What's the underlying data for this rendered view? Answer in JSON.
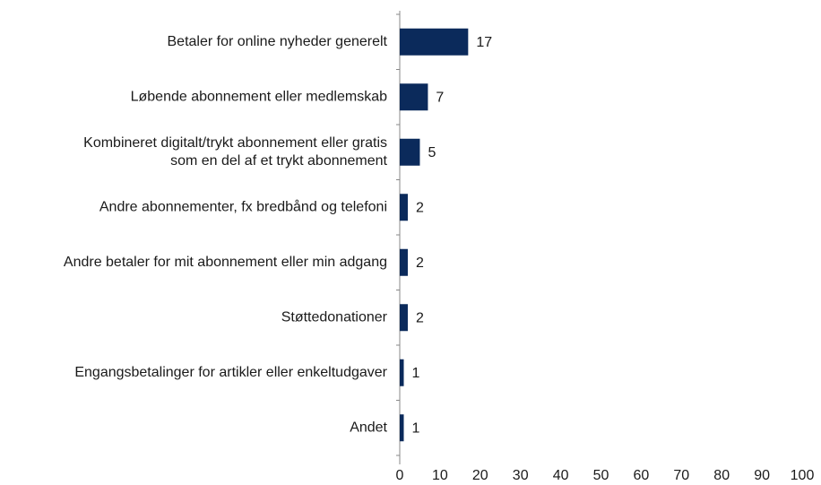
{
  "chart_data": {
    "type": "bar",
    "orientation": "horizontal",
    "categories": [
      "Betaler for online nyheder generelt",
      "Løbende abonnement eller medlemskab",
      "Kombineret digitalt/trykt abonnement eller gratis\nsom en del af et trykt abonnement",
      "Andre abonnementer, fx bredbånd og telefoni",
      "Andre betaler for mit abonnement eller min adgang",
      "Støttedonationer",
      "Engangsbetalinger for artikler eller enkeltudgaver",
      "Andet"
    ],
    "values": [
      17,
      7,
      5,
      2,
      2,
      2,
      1,
      1
    ],
    "color": "#0b2a5b",
    "xlim": [
      0,
      100
    ],
    "xticks": [
      0,
      10,
      20,
      30,
      40,
      50,
      60,
      70,
      80,
      90,
      100
    ],
    "grid": false,
    "data_labels": true
  }
}
